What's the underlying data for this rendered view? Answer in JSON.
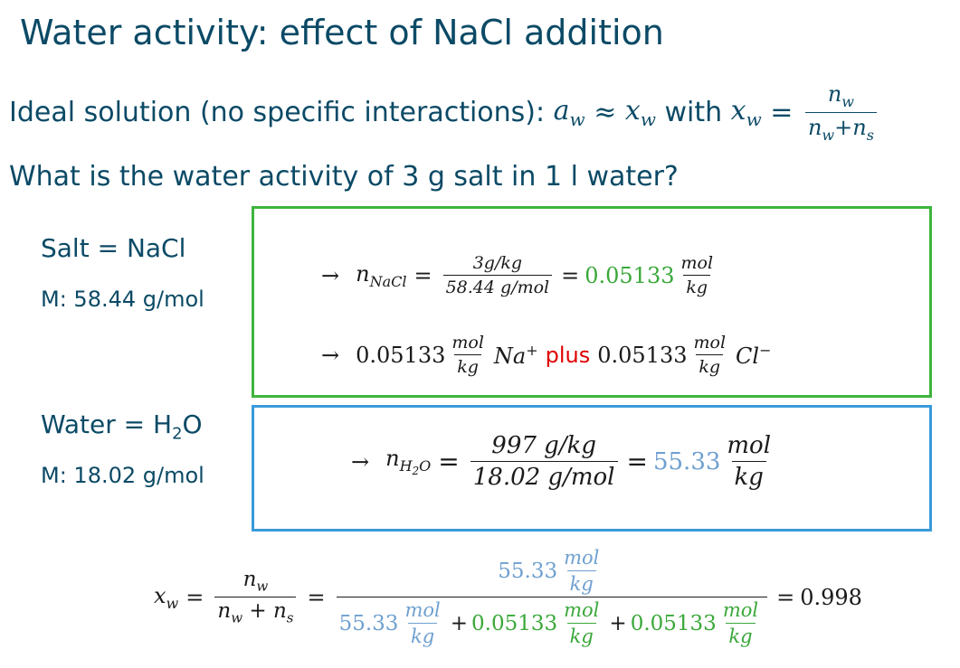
{
  "title": "Water activity: effect of NaCl addition",
  "ideal": {
    "prefix": "Ideal solution (no specific interactions): ",
    "aw": "a",
    "aw_sub": "w",
    "approx": " ≈ ",
    "xw": "x",
    "xw_sub": "w",
    "with": " with ",
    "eq": " = ",
    "num": "n",
    "num_sub": "w",
    "den_a": "n",
    "den_a_sub": "w",
    "den_plus": "+",
    "den_b": "n",
    "den_b_sub": "s"
  },
  "question": "What is the water activity of 3 g salt in 1 l water?",
  "salt": {
    "label": "Salt = NaCl",
    "molar_mass": "M: 58.44 g/mol"
  },
  "water": {
    "label_pre": "Water = H",
    "label_sub": "2",
    "label_post": "O",
    "molar_mass": "M: 18.02 g/mol"
  },
  "eq_nacl": {
    "arrow": "→",
    "lhs": "n",
    "lhs_sub": "NaCl",
    "equals": "=",
    "num": "3g/kg",
    "den": "58.44 g/mol",
    "equals2": "=",
    "value": "0.05133",
    "unit_num": "mol",
    "unit_den": "kg"
  },
  "eq_ions": {
    "arrow": "→",
    "value1": "0.05133",
    "unit1_num": "mol",
    "unit1_den": "kg",
    "ion1": "Na",
    "ion1_sup": "+",
    "plus": "plus",
    "value2": "0.05133",
    "unit2_num": "mol",
    "unit2_den": "kg",
    "ion2": "Cl",
    "ion2_sup": "−"
  },
  "eq_h2o": {
    "arrow": "→",
    "lhs": "n",
    "lhs_sub": "H",
    "lhs_sub2": "2",
    "lhs_sub3": "O",
    "equals": "=",
    "num": "997 g/kg",
    "den": "18.02  g/mol",
    "equals2": "=",
    "value": "55.33",
    "unit_num": "mol",
    "unit_den": "kg"
  },
  "eq_final": {
    "lhs": "x",
    "lhs_sub": "w",
    "equals": "=",
    "f1_num": "n",
    "f1_num_sub": "w",
    "f1_den_a": "n",
    "f1_den_a_sub": "w",
    "f1_den_plus": " + ",
    "f1_den_b": "n",
    "f1_den_b_sub": "s",
    "equals2": "=",
    "top_value": "55.33",
    "top_unit_num": "mol",
    "top_unit_den": "kg",
    "den_v1": "55.33",
    "den_u1_num": "mol",
    "den_u1_den": "kg",
    "den_plus1": "+",
    "den_v2": "0.05133",
    "den_u2_num": "mol",
    "den_u2_den": "kg",
    "den_plus2": "+",
    "den_v3": "0.05133",
    "den_u3_num": "mol",
    "den_u3_den": "kg",
    "equals3": "=",
    "result": "0.998"
  }
}
